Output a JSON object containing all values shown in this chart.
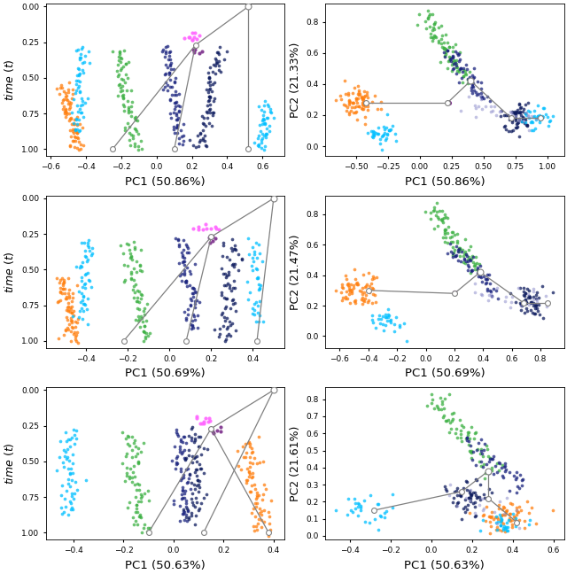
{
  "pc1_labels": [
    "PC1 (50.86%)",
    "PC1 (50.69%)",
    "PC1 (50.63%)"
  ],
  "pc2_labels": [
    "PC2 (21.33%)",
    "PC2 (21.47%)",
    "PC2 (21.61%)"
  ],
  "col_orange": "#FF7F0E",
  "col_cyan": "#00BFFF",
  "col_green": "#3CB043",
  "col_navy": "#1A237E",
  "col_dark_navy": "#0D1B5E",
  "col_magenta": "#FF66FF",
  "col_purple": "#7B2D8B",
  "col_brown": "#8B4513",
  "col_light_purple": "#9090CC"
}
